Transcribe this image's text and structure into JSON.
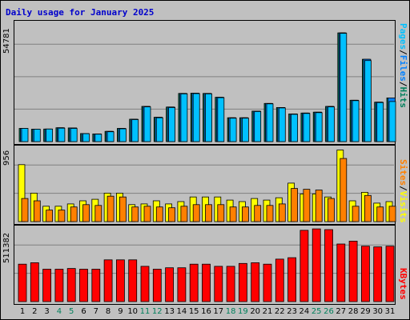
{
  "title": "Daily usage for January 2025",
  "colors": {
    "pages": "#00c0ff",
    "files": "#0080ff",
    "hits": "#00805c",
    "visits": "#ffff00",
    "sites": "#ff8000",
    "kbytes": "#ff0000",
    "weekend": "#00805c",
    "grid": "#808080",
    "background": "#c0c0c0"
  },
  "chart_data": [
    {
      "type": "bar",
      "name": "hits-files-pages",
      "ymax_label": "54781",
      "ylim": [
        0,
        54781
      ],
      "legend": [
        "Pages",
        "/",
        "Files",
        "/",
        "Hits"
      ],
      "days": [
        "1",
        "2",
        "3",
        "4",
        "5",
        "6",
        "7",
        "8",
        "9",
        "10",
        "11",
        "12",
        "13",
        "14",
        "15",
        "16",
        "17",
        "18",
        "19",
        "20",
        "21",
        "22",
        "23",
        "24",
        "25",
        "26",
        "27",
        "28",
        "29",
        "30",
        "31"
      ],
      "weekend_days": [
        "4",
        "5",
        "11",
        "12",
        "18",
        "19",
        "25",
        "26"
      ],
      "series": [
        {
          "name": "Hits",
          "values": [
            6200,
            5800,
            5900,
            6500,
            6400,
            3800,
            3600,
            4800,
            6200,
            10500,
            16500,
            11400,
            16200,
            22600,
            22700,
            22600,
            20800,
            11200,
            11200,
            14300,
            17900,
            16000,
            13000,
            13400,
            13800,
            16500,
            51000,
            19400,
            38600,
            18500,
            20500
          ]
        },
        {
          "name": "Files",
          "values": [
            6200,
            5800,
            5900,
            6500,
            6400,
            3800,
            3600,
            4800,
            6200,
            10500,
            16500,
            11400,
            16200,
            22600,
            22700,
            22600,
            20800,
            11200,
            11200,
            14300,
            17900,
            16000,
            13000,
            13400,
            13800,
            16500,
            51000,
            19400,
            38600,
            18500,
            20500
          ]
        },
        {
          "name": "Pages",
          "values": [
            6200,
            5800,
            5900,
            6300,
            6200,
            3700,
            3500,
            4600,
            6000,
            10300,
            16300,
            11200,
            16000,
            22400,
            22500,
            22400,
            20600,
            11000,
            11000,
            14100,
            17700,
            15800,
            12800,
            13200,
            13600,
            16300,
            50800,
            19200,
            38000,
            18300,
            18800
          ]
        }
      ]
    },
    {
      "type": "bar",
      "name": "visits-sites",
      "ymax_label": "956",
      "ylim": [
        0,
        956
      ],
      "legend": [
        "Sites",
        "/",
        "Visits"
      ],
      "series": [
        {
          "name": "Visits",
          "values": [
            740,
            370,
            200,
            200,
            230,
            270,
            290,
            370,
            370,
            220,
            230,
            270,
            230,
            260,
            320,
            320,
            320,
            280,
            260,
            300,
            280,
            310,
            500,
            360,
            360,
            320,
            930,
            270,
            380,
            240,
            260
          ]
        },
        {
          "name": "Sites",
          "values": [
            300,
            270,
            150,
            150,
            190,
            220,
            210,
            330,
            320,
            190,
            200,
            190,
            180,
            200,
            220,
            220,
            220,
            190,
            190,
            210,
            210,
            230,
            430,
            420,
            410,
            300,
            820,
            200,
            340,
            190,
            200
          ]
        }
      ]
    },
    {
      "type": "bar",
      "name": "kbytes",
      "ymax_label": "511382",
      "ylim": [
        0,
        511382
      ],
      "legend": [
        "KBytes"
      ],
      "series": [
        {
          "name": "KBytes",
          "values": [
            260000,
            270000,
            225000,
            225000,
            230000,
            225000,
            225000,
            290000,
            290000,
            290000,
            245000,
            225000,
            235000,
            235000,
            260000,
            260000,
            245000,
            245000,
            265000,
            270000,
            260000,
            295000,
            305000,
            495000,
            505000,
            500000,
            400000,
            420000,
            385000,
            380000,
            385000
          ]
        }
      ]
    }
  ]
}
